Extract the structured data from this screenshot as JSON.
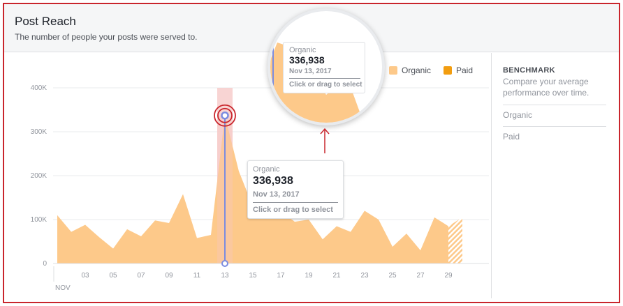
{
  "header": {
    "title": "Post Reach",
    "subtitle": "The number of people your posts were served to."
  },
  "legend": [
    {
      "label": "Organic",
      "color": "#fdc98a"
    },
    {
      "label": "Paid",
      "color": "#f29d10"
    }
  ],
  "benchmark": {
    "title": "BENCHMARK",
    "description": "Compare your average performance over time.",
    "items": [
      "Organic",
      "Paid"
    ]
  },
  "tooltip": {
    "series": "Organic",
    "value": "336,938",
    "date": "Nov 13, 2017",
    "hint": "Click or drag to select"
  },
  "colors": {
    "organic": "#fdc98a",
    "paid": "#f29d10",
    "highlight_band": "#f6c6c4",
    "marker_line": "#7b8ce0",
    "annotation_red": "#c9252c"
  },
  "chart_data": {
    "type": "area",
    "x": [
      1,
      2,
      3,
      4,
      5,
      6,
      7,
      8,
      9,
      10,
      11,
      12,
      13,
      14,
      15,
      16,
      17,
      18,
      19,
      20,
      21,
      22,
      23,
      24,
      25,
      26,
      27,
      28,
      29,
      30
    ],
    "x_tick_labels": [
      "03",
      "05",
      "07",
      "09",
      "11",
      "13",
      "15",
      "17",
      "19",
      "21",
      "23",
      "25",
      "27",
      "29"
    ],
    "x_tick_values": [
      3,
      5,
      7,
      9,
      11,
      13,
      15,
      17,
      19,
      21,
      23,
      25,
      27,
      29
    ],
    "x_month_label": "NOV",
    "y_ticks": [
      0,
      100000,
      200000,
      300000,
      400000
    ],
    "y_tick_labels": [
      "0",
      "100K",
      "200K",
      "300K",
      "400K"
    ],
    "ylim": [
      0,
      420000
    ],
    "series": [
      {
        "name": "Organic",
        "values": [
          110000,
          72000,
          88000,
          60000,
          34000,
          78000,
          62000,
          98000,
          92000,
          158000,
          58000,
          65000,
          336938,
          210000,
          130000,
          135000,
          120000,
          95000,
          100000,
          55000,
          85000,
          72000,
          120000,
          100000,
          38000,
          68000,
          30000,
          105000,
          85000,
          105000
        ]
      },
      {
        "name": "Paid",
        "values": [
          0,
          0,
          0,
          0,
          0,
          0,
          0,
          0,
          0,
          0,
          0,
          0,
          0,
          0,
          0,
          0,
          0,
          0,
          0,
          0,
          0,
          0,
          0,
          0,
          0,
          0,
          0,
          0,
          0,
          0
        ]
      }
    ],
    "highlighted_x": 13,
    "grid": true,
    "legend_position": "top-right"
  }
}
